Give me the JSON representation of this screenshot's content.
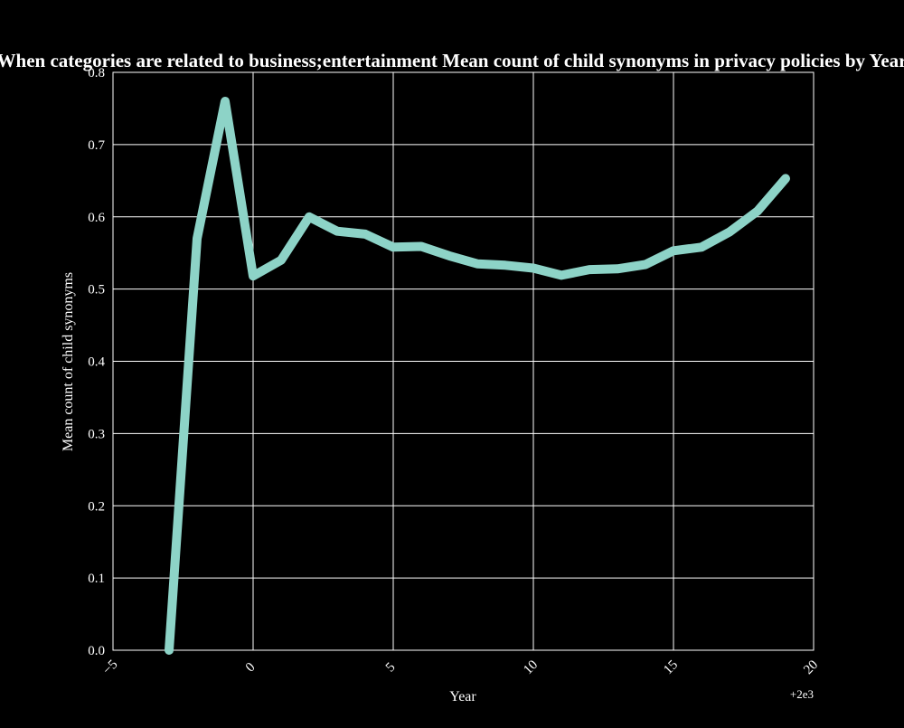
{
  "colors": {
    "background": "#000000",
    "foreground": "#ffffff",
    "grid": "#ffffff",
    "line": "#8dd3c7"
  },
  "chart_data": {
    "type": "line",
    "title": "When categories are related to business;entertainment Mean count of child synonyms in privacy policies by Year",
    "xlabel": "Year",
    "ylabel": "Mean count of child synonyms",
    "x_offset_label": "+2e3",
    "xlim": [
      -5,
      20
    ],
    "ylim": [
      0.0,
      0.8
    ],
    "grid": true,
    "x_ticks": [
      -5,
      0,
      5,
      10,
      15,
      20
    ],
    "x_tick_labels": [
      "−5",
      "0",
      "5",
      "10",
      "15",
      "20"
    ],
    "y_ticks": [
      0.0,
      0.1,
      0.2,
      0.3,
      0.4,
      0.5,
      0.6,
      0.7,
      0.8
    ],
    "y_tick_labels": [
      "0.0",
      "0.1",
      "0.2",
      "0.3",
      "0.4",
      "0.5",
      "0.6",
      "0.7",
      "0.8"
    ],
    "series": [
      {
        "color": "#8dd3c7",
        "x": [
          -3,
          -2,
          -1,
          0,
          1,
          2,
          3,
          4,
          5,
          6,
          7,
          8,
          9,
          10,
          11,
          12,
          13,
          14,
          15,
          16,
          17,
          18,
          19
        ],
        "values": [
          0.0,
          0.57,
          0.76,
          0.518,
          0.54,
          0.6,
          0.58,
          0.576,
          0.558,
          0.559,
          0.546,
          0.535,
          0.533,
          0.529,
          0.519,
          0.527,
          0.528,
          0.534,
          0.553,
          0.558,
          0.579,
          0.608,
          0.653
        ]
      }
    ]
  }
}
